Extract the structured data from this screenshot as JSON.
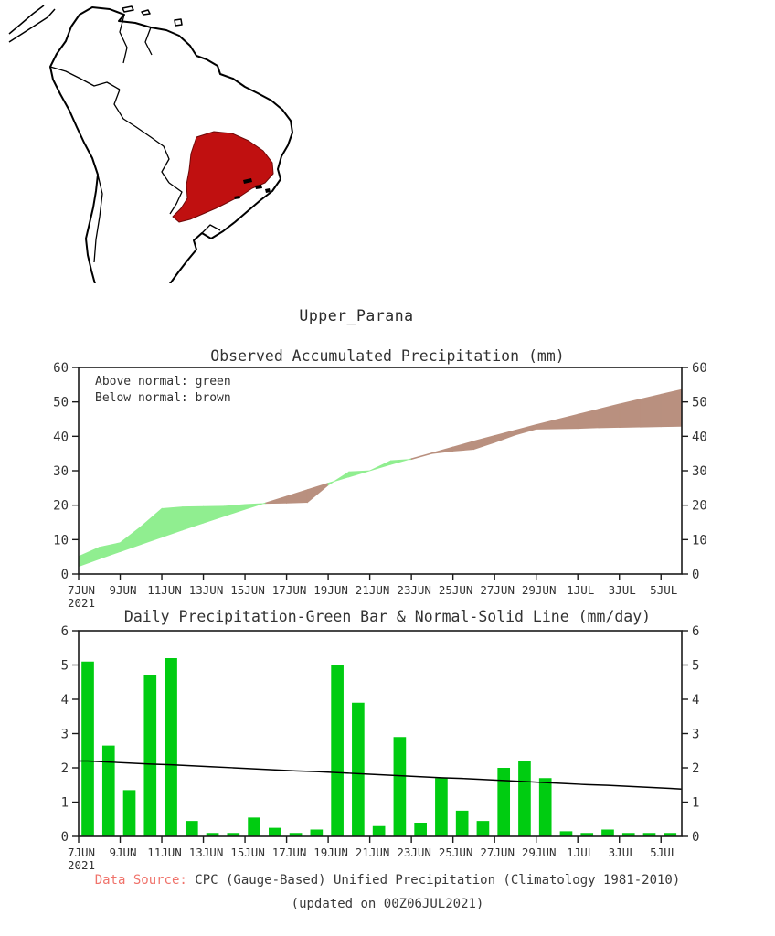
{
  "region": {
    "title": "Upper_Parana"
  },
  "map": {
    "highlight_color": "#c01010",
    "outline_color": "#000000",
    "highlight_name": "upper-parana-basin"
  },
  "footer": {
    "source_label": "Data Source:",
    "source_text": "CPC (Gauge-Based) Unified Precipitation (Climatology 1981-2010)",
    "updated_text": "(updated on 00Z06JUL2021)"
  },
  "chart_data": [
    {
      "type": "area",
      "title": "Observed Accumulated Precipitation (mm)",
      "legend": [
        "Above normal: green",
        "Below normal: brown"
      ],
      "ylim": [
        0,
        60
      ],
      "yticks": [
        0,
        10,
        20,
        30,
        40,
        50,
        60
      ],
      "x_labels": [
        "7JUN",
        "9JUN",
        "11JUN",
        "13JUN",
        "15JUN",
        "17JUN",
        "19JUN",
        "21JUN",
        "23JUN",
        "25JUN",
        "27JUN",
        "29JUN",
        "1JUL",
        "3JUL",
        "5JUL"
      ],
      "x_tick_step": 2,
      "x_year": "2021",
      "observed_accum": [
        5.1,
        7.8,
        9.1,
        13.8,
        19.0,
        19.5,
        19.6,
        19.7,
        20.2,
        20.5,
        20.6,
        20.8,
        25.8,
        29.7,
        30.0,
        32.9,
        33.3,
        35.0,
        35.7,
        36.2,
        38.2,
        40.4,
        42.1,
        42.2,
        42.3,
        42.5,
        42.6,
        42.7,
        42.8
      ],
      "normal_accum": [
        2.2,
        4.4,
        6.5,
        8.6,
        10.7,
        12.8,
        14.8,
        16.8,
        18.8,
        20.7,
        22.6,
        24.5,
        26.4,
        28.2,
        30.0,
        31.8,
        33.5,
        35.2,
        36.9,
        38.6,
        40.2,
        41.8,
        43.4,
        44.9,
        46.4,
        47.9,
        49.4,
        50.8,
        52.2
      ],
      "above_color": "#90ee90",
      "below_color": "#b9907f"
    },
    {
      "type": "bar",
      "title": "Daily Precipitation-Green Bar & Normal-Solid Line (mm/day)",
      "ylim": [
        0,
        6
      ],
      "yticks": [
        0,
        1,
        2,
        3,
        4,
        5,
        6
      ],
      "x_labels": [
        "7JUN",
        "9JUN",
        "11JUN",
        "13JUN",
        "15JUN",
        "17JUN",
        "19JUN",
        "21JUN",
        "23JUN",
        "25JUN",
        "27JUN",
        "29JUN",
        "1JUL",
        "3JUL",
        "5JUL"
      ],
      "x_tick_step": 2,
      "x_year": "2021",
      "values": [
        5.1,
        2.65,
        1.35,
        4.7,
        5.2,
        0.45,
        0.1,
        0.1,
        0.55,
        0.25,
        0.1,
        0.2,
        5.0,
        3.9,
        0.3,
        2.9,
        0.4,
        1.7,
        0.75,
        0.45,
        2.0,
        2.2,
        1.7,
        0.15,
        0.1,
        0.2,
        0.1,
        0.1,
        0.1
      ],
      "normal_line": [
        2.2,
        2.17,
        2.14,
        2.11,
        2.09,
        2.06,
        2.03,
        2.0,
        1.97,
        1.94,
        1.91,
        1.89,
        1.86,
        1.83,
        1.8,
        1.77,
        1.74,
        1.71,
        1.69,
        1.66,
        1.63,
        1.6,
        1.57,
        1.54,
        1.51,
        1.49,
        1.46,
        1.43,
        1.4
      ],
      "bar_color": "#00cc11",
      "line_color": "#000000"
    }
  ]
}
